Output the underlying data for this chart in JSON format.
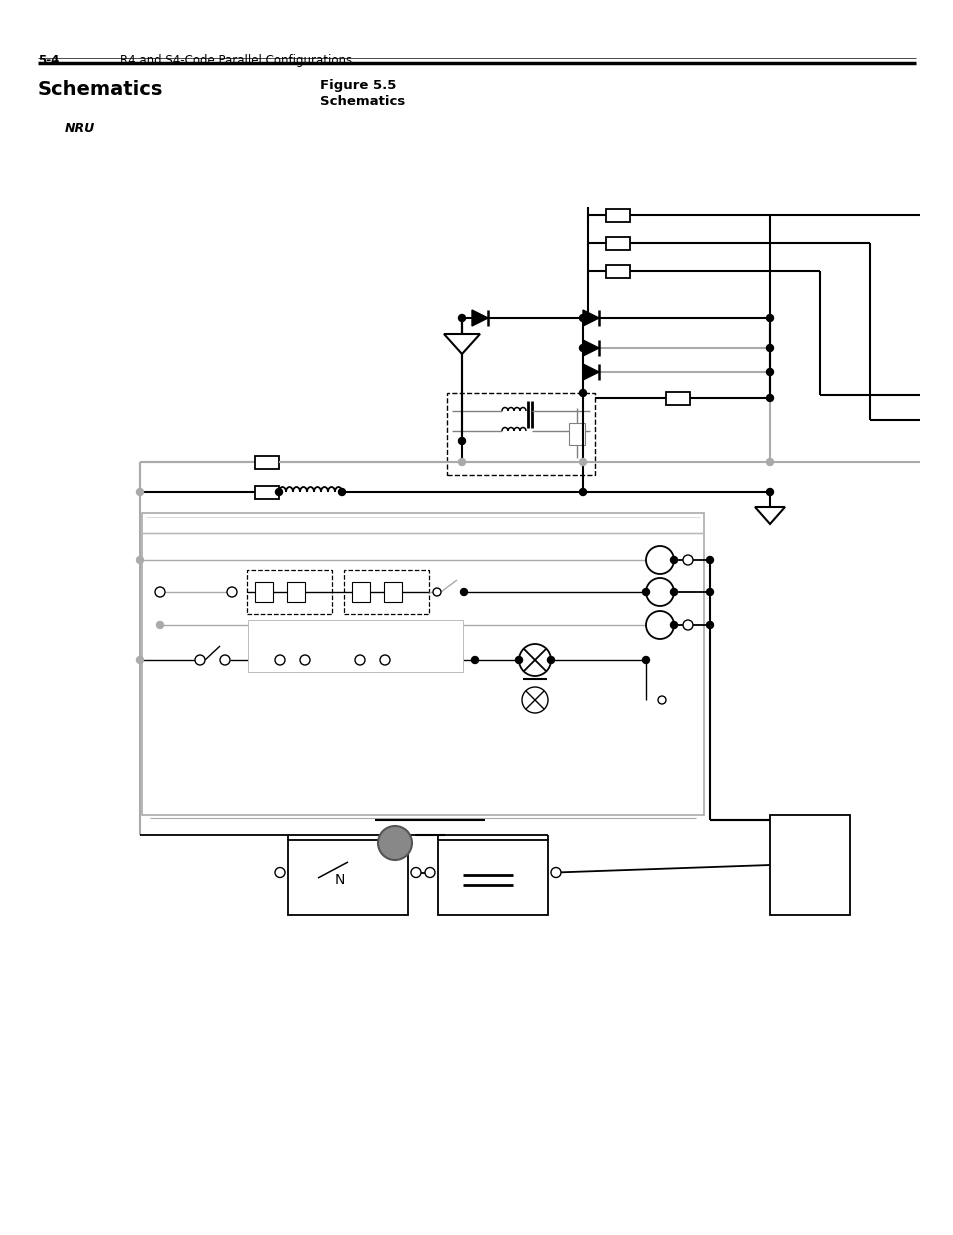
{
  "page_label": "5-4",
  "page_title": "R4 and S4-Code Parallel Configurations",
  "section_title": "Schematics",
  "figure_label": "Figure 5.5",
  "figure_subtitle": "Schematics",
  "nru_label": "NRU",
  "bg_color": "#ffffff",
  "black": "#000000",
  "gray": "#aaaaaa",
  "dark_gray": "#888888",
  "med_gray": "#999999"
}
